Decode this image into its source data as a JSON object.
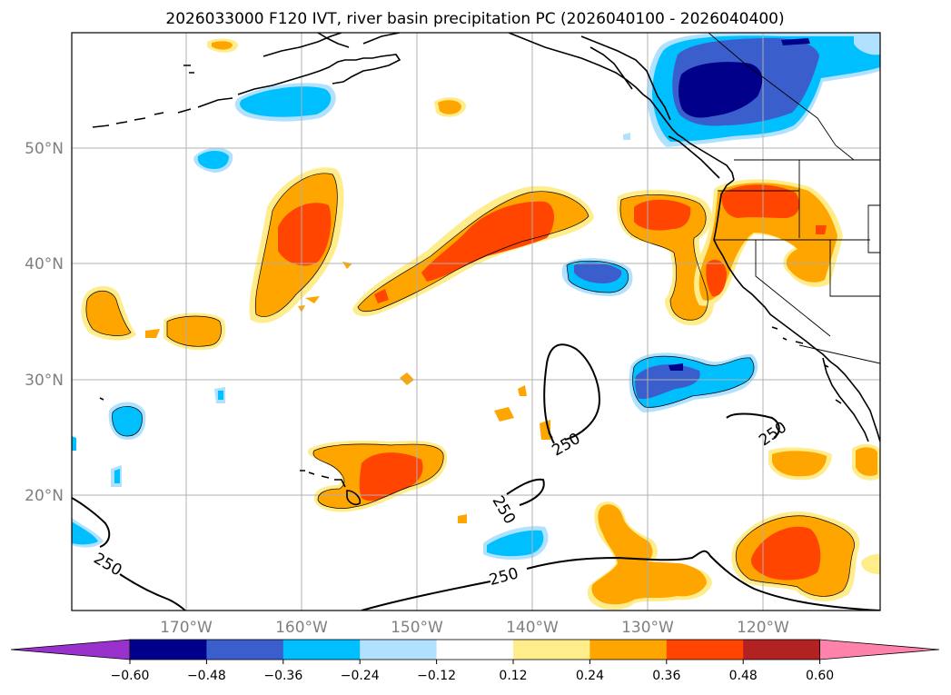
{
  "title": "2026033000 F120 IVT, river basin precipitation PC (2026040100 - 2026040400)",
  "longitude_labels": [
    "170°W",
    "160°W",
    "150°W",
    "140°W",
    "130°W",
    "120°W"
  ],
  "latitude_labels": [
    "50°N",
    "40°N",
    "30°N",
    "20°N"
  ],
  "contour_label": "250",
  "colorbar": {
    "tick_labels": [
      "−0.60",
      "−0.48",
      "−0.36",
      "−0.24",
      "−0.12",
      "0.12",
      "0.24",
      "0.36",
      "0.48",
      "0.60"
    ],
    "colors": [
      "#9932cc",
      "#00008b",
      "#3a5fcd",
      "#00bfff",
      "#b0e2ff",
      "#ffffff",
      "#ffec8b",
      "#ffa500",
      "#ff4500",
      "#b22222",
      "#ff82ab"
    ]
  },
  "colors": {
    "coast": "#000000",
    "grid": "#b0b0b0",
    "lt_yellow": "#ffec8b",
    "orange": "#ffa500",
    "red_orange": "#ff4500",
    "dark_red": "#b22222",
    "lt_blue": "#b0e2ff",
    "sky_blue": "#00bfff",
    "royal_blue": "#3a5fcd",
    "navy": "#00008b"
  }
}
